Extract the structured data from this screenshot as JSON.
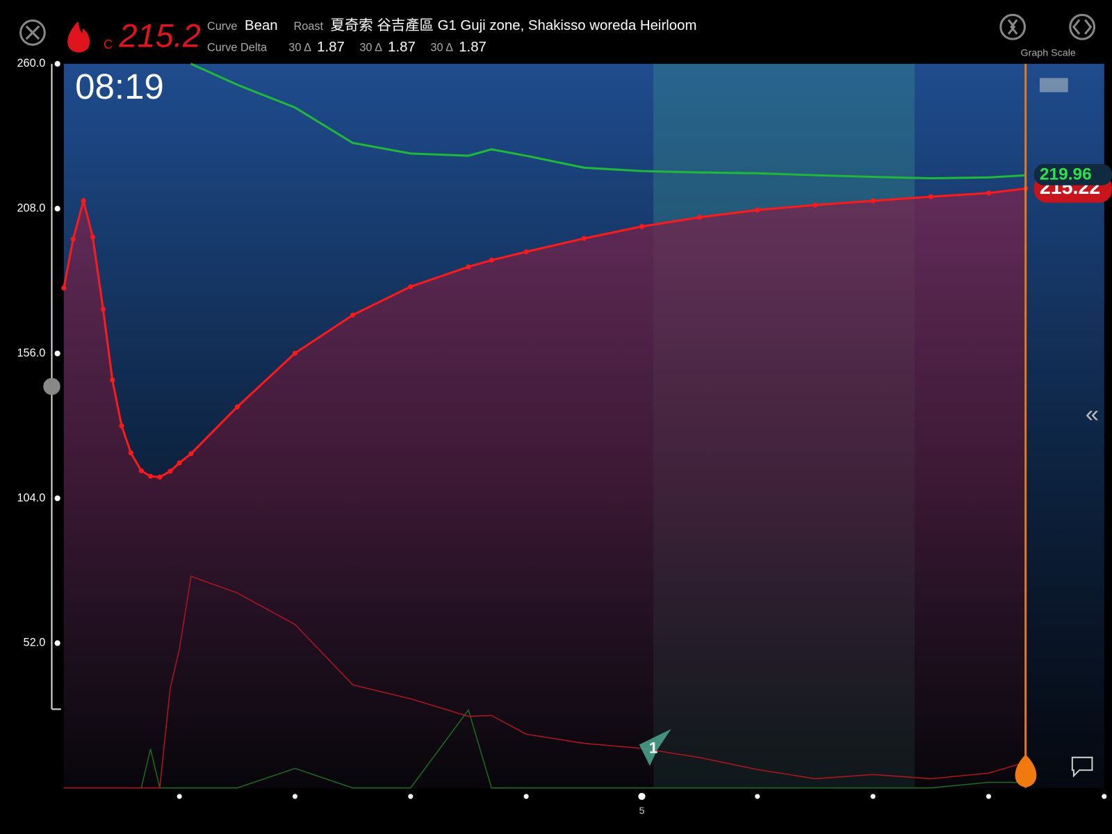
{
  "header": {
    "temperature": "215.2",
    "unit": "C",
    "curve_label": "Curve",
    "curve": "Bean",
    "roast_label": "Roast",
    "roast": "夏奇索 谷吉產區 G1 Guji zone, Shakisso woreda Heirloom",
    "delta_label": "Curve Delta",
    "deltas": [
      {
        "window": "30 Δ",
        "value": "1.87"
      },
      {
        "window": "30 Δ",
        "value": "1.87"
      },
      {
        "window": "30 Δ",
        "value": "1.87"
      }
    ]
  },
  "timer": "08:19",
  "graph_scale": "Graph Scale",
  "chart_data": {
    "type": "line",
    "x": [
      0,
      0.08,
      0.17,
      0.25,
      0.34,
      0.42,
      0.5,
      0.58,
      0.67,
      0.75,
      0.83,
      0.92,
      1.0,
      1.1,
      1.5,
      2.0,
      2.5,
      3.0,
      3.5,
      3.7,
      4.0,
      4.5,
      5.0,
      5.5,
      6.0,
      6.5,
      7.0,
      7.5,
      8.0,
      8.32
    ],
    "xlim": [
      0,
      9
    ],
    "xticks": [
      5
    ],
    "minor_xticks": [
      1,
      2,
      3,
      4,
      6,
      7,
      8,
      9
    ],
    "ylim": [
      0,
      260
    ],
    "yticks": [
      {
        "value": 52,
        "label": "52.0"
      },
      {
        "value": 104,
        "label": "104.0"
      },
      {
        "value": 156,
        "label": "156.0"
      },
      {
        "value": 208,
        "label": "208.0"
      },
      {
        "value": 260,
        "label": "260.0"
      }
    ],
    "series": [
      {
        "color": "#ff1a1a",
        "current_label": "215.22",
        "values": [
          179.5,
          197,
          210.8,
          197.8,
          171.9,
          146.5,
          130,
          120.3,
          113.9,
          111.9,
          111.6,
          113.7,
          116.7,
          120,
          136.8,
          156.1,
          169.8,
          180,
          187.1,
          189.5,
          192.5,
          197.3,
          201.6,
          204.9,
          207.5,
          209.3,
          210.8,
          212.3,
          213.6,
          215.22
        ]
      },
      {
        "color": "#1fb83a",
        "current_label": "219.96",
        "values": [
          null,
          null,
          null,
          null,
          null,
          null,
          null,
          null,
          null,
          null,
          null,
          null,
          null,
          260,
          252.5,
          244.3,
          231.6,
          227.8,
          227,
          229.3,
          227,
          222.7,
          221.5,
          221,
          220.7,
          220,
          219.4,
          218.9,
          219.2,
          219.96
        ]
      },
      {
        "color": "#b0151f",
        "values": [
          0,
          0,
          0,
          0,
          0,
          0,
          0,
          0,
          0,
          0,
          0,
          35.8,
          49.8,
          76,
          70,
          58.7,
          37,
          32,
          25.7,
          26,
          19.3,
          16,
          14.2,
          10.9,
          6.6,
          3.3,
          4.8,
          3.3,
          5.3,
          9.2
        ]
      },
      {
        "color": "#1d6b22",
        "values": [
          0,
          0,
          0,
          0,
          0,
          0,
          0,
          0,
          0,
          14,
          0,
          0,
          0,
          0,
          0,
          7,
          0,
          0,
          28,
          0,
          0,
          0,
          0,
          0,
          0,
          0,
          0,
          0,
          2,
          2
        ]
      }
    ],
    "shaded_x": [
      5.1,
      7.36
    ],
    "marker_x": 8.32,
    "events": [
      {
        "x": 5.1,
        "label": "1"
      }
    ]
  }
}
